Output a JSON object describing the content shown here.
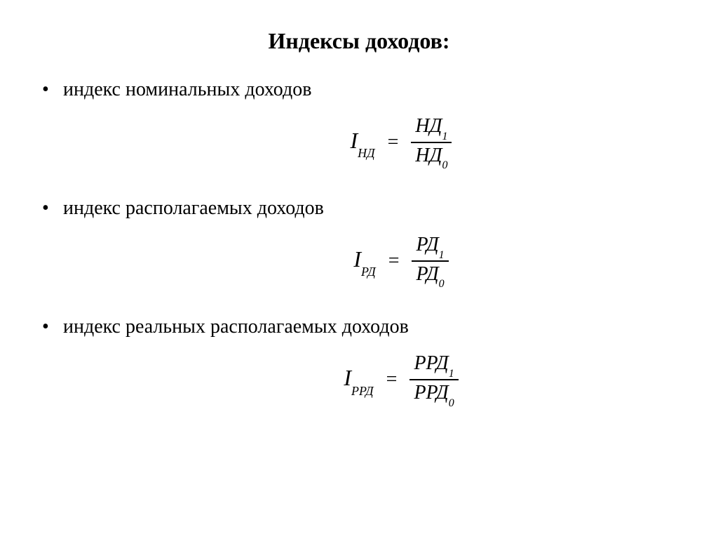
{
  "title": "Индексы доходов:",
  "items": [
    {
      "label": "индекс номинальных доходов",
      "formula": {
        "var": "I",
        "var_sub": "НД",
        "numerator": "НД",
        "num_sub": "1",
        "denominator": "НД",
        "den_sub": "0"
      }
    },
    {
      "label": "индекс располагаемых доходов",
      "formula": {
        "var": "I",
        "var_sub": "РД",
        "numerator": "РД",
        "num_sub": "1",
        "denominator": "РД",
        "den_sub": "0"
      }
    },
    {
      "label": "индекс реальных располагаемых доходов",
      "formula": {
        "var": "I",
        "var_sub": "РРД",
        "numerator": "РРД",
        "num_sub": "1",
        "denominator": "РРД",
        "den_sub": "0"
      }
    }
  ],
  "style": {
    "title_fontsize": 32,
    "body_fontsize": 28,
    "formula_fontsize": 30,
    "subscript_fontsize": 18,
    "background_color": "#ffffff",
    "text_color": "#000000",
    "font_family": "Times New Roman"
  }
}
